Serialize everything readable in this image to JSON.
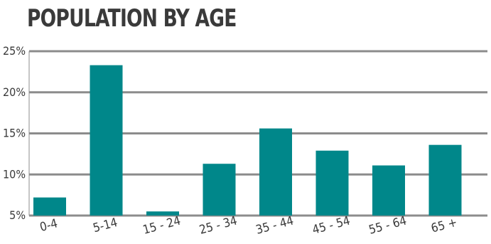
{
  "chart_data": {
    "type": "bar",
    "title": "POPULATION BY AGE",
    "categories": [
      "0-4",
      "5-14",
      "15 - 24",
      "25 - 34",
      "35 - 44",
      "45 - 54",
      "55 - 64",
      "65 +"
    ],
    "values": [
      7.2,
      23.3,
      5.5,
      11.3,
      15.6,
      12.9,
      11.1,
      13.6
    ],
    "ylim": [
      5,
      25
    ],
    "yticks": [
      5,
      10,
      15,
      20,
      25
    ],
    "ytick_labels": [
      "5%",
      "10%",
      "15%",
      "20%",
      "25%"
    ],
    "xlabel": "",
    "ylabel": "",
    "grid": true,
    "colors": {
      "bar": "#00878a",
      "grid": "#8c8c8c",
      "text": "#3a3a3a"
    }
  }
}
